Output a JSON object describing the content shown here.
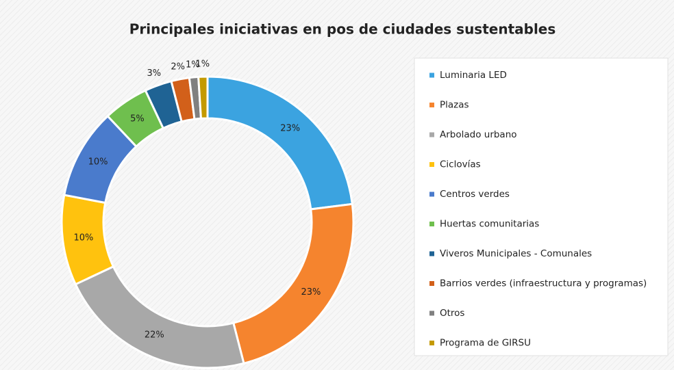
{
  "chart_data": {
    "type": "donut",
    "title": "Principales iniciativas en pos de ciudades sustentables",
    "categories": [
      "Luminaria LED",
      "Plazas",
      "Arbolado urbano",
      "Ciclovías",
      "Centros verdes",
      "Huertas comunitarias",
      "Viveros Municipales - Comunales",
      "Barrios verdes (infraestructura y programas)",
      "Otros",
      "Programa de GIRSU"
    ],
    "values": [
      23,
      23,
      22,
      10,
      10,
      5,
      3,
      2,
      1,
      1
    ],
    "value_labels": [
      "23%",
      "23%",
      "22%",
      "10%",
      "10%",
      "5%",
      "3%",
      "2%",
      "1%",
      "1%"
    ],
    "colors": [
      "#3ba3e0",
      "#f5842e",
      "#a8a8a8",
      "#ffc20e",
      "#4a7bcc",
      "#6fbf4e",
      "#1f6394",
      "#d2601a",
      "#808080",
      "#c49a00"
    ],
    "legend": "right"
  }
}
